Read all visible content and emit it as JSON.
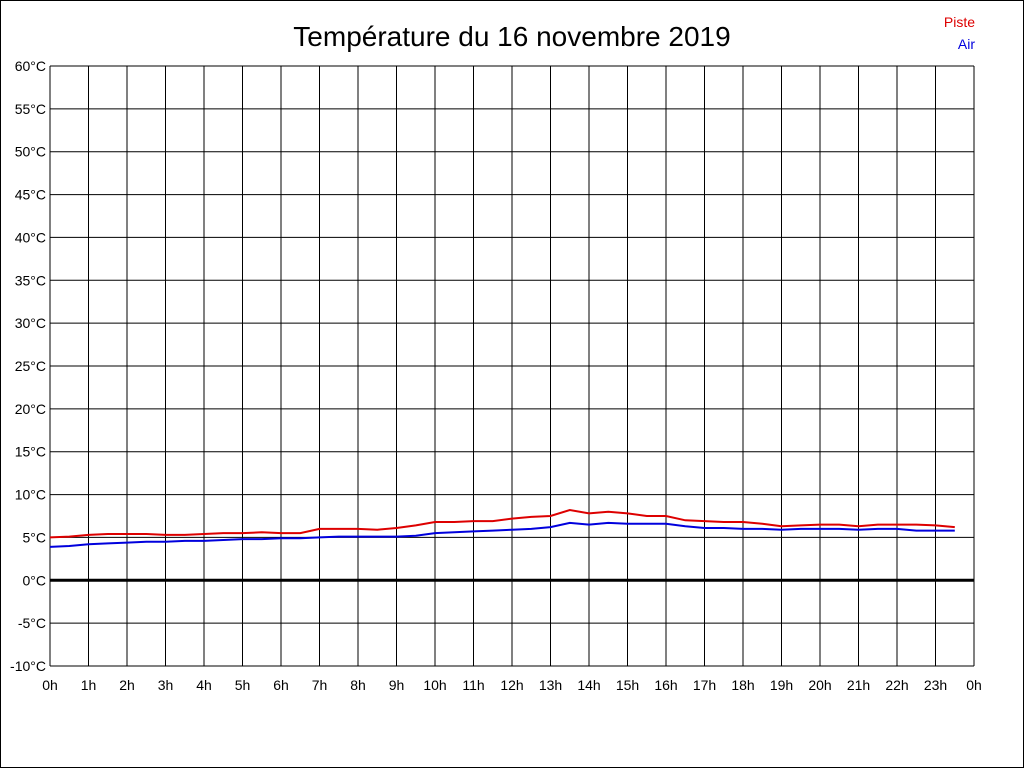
{
  "chart_data": {
    "type": "line",
    "title": "Température du 16 novembre 2019",
    "xlabel": "",
    "ylabel": "",
    "x_ticks": [
      "0h",
      "1h",
      "2h",
      "3h",
      "4h",
      "5h",
      "6h",
      "7h",
      "8h",
      "9h",
      "10h",
      "11h",
      "12h",
      "13h",
      "14h",
      "15h",
      "16h",
      "17h",
      "18h",
      "19h",
      "20h",
      "21h",
      "22h",
      "23h",
      "0h"
    ],
    "y_ticks": [
      "-10°C",
      "-5°C",
      "0°C",
      "5°C",
      "10°C",
      "15°C",
      "20°C",
      "25°C",
      "30°C",
      "35°C",
      "40°C",
      "45°C",
      "50°C",
      "55°C",
      "60°C"
    ],
    "ylim": [
      -10,
      60
    ],
    "xlim": [
      0,
      24
    ],
    "grid": true,
    "legend_position": "top-right",
    "x": [
      0,
      0.5,
      1,
      1.5,
      2,
      2.5,
      3,
      3.5,
      4,
      4.5,
      5,
      5.5,
      6,
      6.5,
      7,
      7.5,
      8,
      8.5,
      9,
      9.5,
      10,
      10.5,
      11,
      11.5,
      12,
      12.5,
      13,
      13.5,
      14,
      14.5,
      15,
      15.5,
      16,
      16.5,
      17,
      17.5,
      18,
      18.5,
      19,
      19.5,
      20,
      20.5,
      21,
      21.5,
      22,
      22.5,
      23,
      23.5
    ],
    "series": [
      {
        "name": "Piste",
        "color": "#dd0000",
        "values": [
          5.0,
          5.1,
          5.3,
          5.4,
          5.4,
          5.4,
          5.3,
          5.3,
          5.4,
          5.5,
          5.5,
          5.6,
          5.5,
          5.5,
          6.0,
          6.0,
          6.0,
          5.9,
          6.1,
          6.4,
          6.8,
          6.8,
          6.9,
          6.9,
          7.2,
          7.4,
          7.5,
          8.2,
          7.8,
          8.0,
          7.8,
          7.5,
          7.5,
          7.0,
          6.9,
          6.8,
          6.8,
          6.6,
          6.3,
          6.4,
          6.5,
          6.5,
          6.3,
          6.5,
          6.5,
          6.5,
          6.4,
          6.2
        ]
      },
      {
        "name": "Air",
        "color": "#0000dd",
        "values": [
          3.9,
          4.0,
          4.2,
          4.3,
          4.4,
          4.5,
          4.5,
          4.6,
          4.6,
          4.7,
          4.8,
          4.8,
          4.9,
          4.9,
          5.0,
          5.1,
          5.1,
          5.1,
          5.1,
          5.2,
          5.5,
          5.6,
          5.7,
          5.8,
          5.9,
          6.0,
          6.2,
          6.7,
          6.5,
          6.7,
          6.6,
          6.6,
          6.6,
          6.3,
          6.1,
          6.1,
          6.0,
          6.0,
          5.9,
          6.0,
          6.0,
          6.0,
          5.9,
          6.0,
          6.0,
          5.8,
          5.8,
          5.8
        ]
      }
    ]
  }
}
